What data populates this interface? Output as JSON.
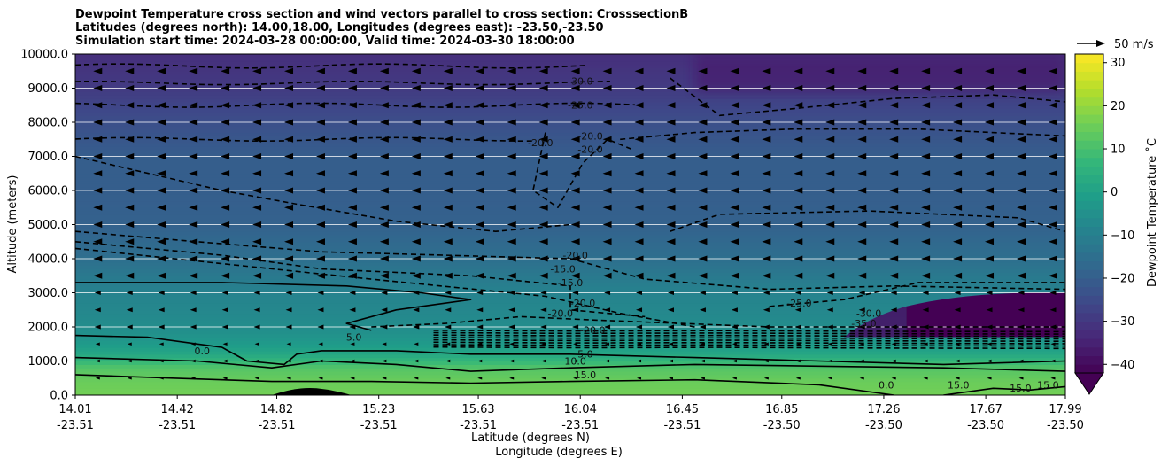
{
  "chart_data": {
    "type": "heatmap",
    "title_lines": [
      "Dewpoint Temperature cross section and wind vectors parallel to cross section: CrosssectionB",
      "Latitudes (degrees north): 14.00,18.00, Longitudes (degrees east): -23.50,-23.50",
      "Simulation start time: 2024-03-28 00:00:00, Valid time: 2024-03-30 18:00:00"
    ],
    "xlabel_lines": [
      "Latitude (degrees N)",
      "Longitude (degrees E)"
    ],
    "ylabel": "Altitude (meters)",
    "ylim": [
      0,
      10000
    ],
    "xlim": [
      14.01,
      17.99
    ],
    "yticks": [
      {
        "value": 0,
        "label": "0.0"
      },
      {
        "value": 1000,
        "label": "1000.0"
      },
      {
        "value": 2000,
        "label": "2000.0"
      },
      {
        "value": 3000,
        "label": "3000.0"
      },
      {
        "value": 4000,
        "label": "4000.0"
      },
      {
        "value": 5000,
        "label": "5000.0"
      },
      {
        "value": 6000,
        "label": "6000.0"
      },
      {
        "value": 7000,
        "label": "7000.0"
      },
      {
        "value": 8000,
        "label": "8000.0"
      },
      {
        "value": 9000,
        "label": "9000.0"
      },
      {
        "value": 10000,
        "label": "10000.0"
      }
    ],
    "xticks": [
      {
        "lat": 14.01,
        "lat_label": "14.01",
        "lon_label": "-23.51"
      },
      {
        "lat": 14.42,
        "lat_label": "14.42",
        "lon_label": "-23.51"
      },
      {
        "lat": 14.82,
        "lat_label": "14.82",
        "lon_label": "-23.51"
      },
      {
        "lat": 15.23,
        "lat_label": "15.23",
        "lon_label": "-23.51"
      },
      {
        "lat": 15.63,
        "lat_label": "15.63",
        "lon_label": "-23.51"
      },
      {
        "lat": 16.04,
        "lat_label": "16.04",
        "lon_label": "-23.51"
      },
      {
        "lat": 16.45,
        "lat_label": "16.45",
        "lon_label": "-23.51"
      },
      {
        "lat": 16.85,
        "lat_label": "16.85",
        "lon_label": "-23.50"
      },
      {
        "lat": 17.26,
        "lat_label": "17.26",
        "lon_label": "-23.50"
      },
      {
        "lat": 17.67,
        "lat_label": "17.67",
        "lon_label": "-23.50"
      },
      {
        "lat": 17.99,
        "lat_label": "17.99",
        "lon_label": "-23.50"
      }
    ],
    "grid_horizontal": true,
    "colorbar": {
      "label": "Dewpoint Temperature ˚C",
      "min": -42,
      "max": 32,
      "ticks": [
        {
          "value": -40,
          "label": "−40"
        },
        {
          "value": -30,
          "label": "−30"
        },
        {
          "value": -20,
          "label": "−20"
        },
        {
          "value": -10,
          "label": "−10"
        },
        {
          "value": 0,
          "label": "0"
        },
        {
          "value": 10,
          "label": "10"
        },
        {
          "value": 20,
          "label": "20"
        },
        {
          "value": 30,
          "label": "30"
        }
      ],
      "colormap": [
        "#440154",
        "#482878",
        "#3e4989",
        "#31688e",
        "#26828e",
        "#1f9e89",
        "#35b779",
        "#6ece58",
        "#b5de2b",
        "#fde725"
      ]
    },
    "wind_reference": {
      "label": "50 m/s"
    },
    "temperature_profile": [
      {
        "alt": 0,
        "t": 16
      },
      {
        "alt": 400,
        "t": 15
      },
      {
        "alt": 800,
        "t": 12
      },
      {
        "alt": 1000,
        "t": 7
      },
      {
        "alt": 1200,
        "t": 2
      },
      {
        "alt": 1600,
        "t": -3
      },
      {
        "alt": 2000,
        "t": -6
      },
      {
        "alt": 3000,
        "t": -9
      },
      {
        "alt": 4000,
        "t": -15
      },
      {
        "alt": 5000,
        "t": -19
      },
      {
        "alt": 6000,
        "t": -20
      },
      {
        "alt": 7000,
        "t": -20
      },
      {
        "alt": 8000,
        "t": -24
      },
      {
        "alt": 9000,
        "t": -29
      },
      {
        "alt": 10000,
        "t": -32
      }
    ],
    "contour_labels": [
      {
        "text": "-30.0",
        "lat": 16.04,
        "alt": 9100
      },
      {
        "text": "-25.0",
        "lat": 16.04,
        "alt": 8400
      },
      {
        "text": "-20.0",
        "lat": 15.88,
        "alt": 7300
      },
      {
        "text": "-20.0",
        "lat": 16.08,
        "alt": 7500
      },
      {
        "text": "-20.0",
        "lat": 16.08,
        "alt": 7100
      },
      {
        "text": "-20.0",
        "lat": 16.02,
        "alt": 4000
      },
      {
        "text": "-15.0",
        "lat": 15.97,
        "alt": 3600
      },
      {
        "text": "-15.0",
        "lat": 16.0,
        "alt": 3200
      },
      {
        "text": "-20.0",
        "lat": 16.05,
        "alt": 2600
      },
      {
        "text": "-20.0",
        "lat": 15.96,
        "alt": 2300
      },
      {
        "text": "-20.0",
        "lat": 16.09,
        "alt": 1800
      },
      {
        "text": "-25.0",
        "lat": 16.92,
        "alt": 2600
      },
      {
        "text": "-30.0",
        "lat": 17.2,
        "alt": 2300
      },
      {
        "text": "-35.0",
        "lat": 17.18,
        "alt": 2000
      },
      {
        "text": "5.0",
        "lat": 15.13,
        "alt": 1600
      },
      {
        "text": "5.0",
        "lat": 16.06,
        "alt": 1100
      },
      {
        "text": "10.0",
        "lat": 16.02,
        "alt": 900
      },
      {
        "text": "15.0",
        "lat": 16.06,
        "alt": 500
      },
      {
        "text": "0.0",
        "lat": 14.52,
        "alt": 1200
      },
      {
        "text": "0.0",
        "lat": 16.8,
        "alt": 10000
      },
      {
        "text": "0.0",
        "lat": 17.27,
        "alt": 200
      },
      {
        "text": "15.0",
        "lat": 17.56,
        "alt": 200
      },
      {
        "text": "15.0",
        "lat": 17.81,
        "alt": 100
      },
      {
        "text": "15.0",
        "lat": 17.92,
        "alt": 200
      }
    ]
  }
}
